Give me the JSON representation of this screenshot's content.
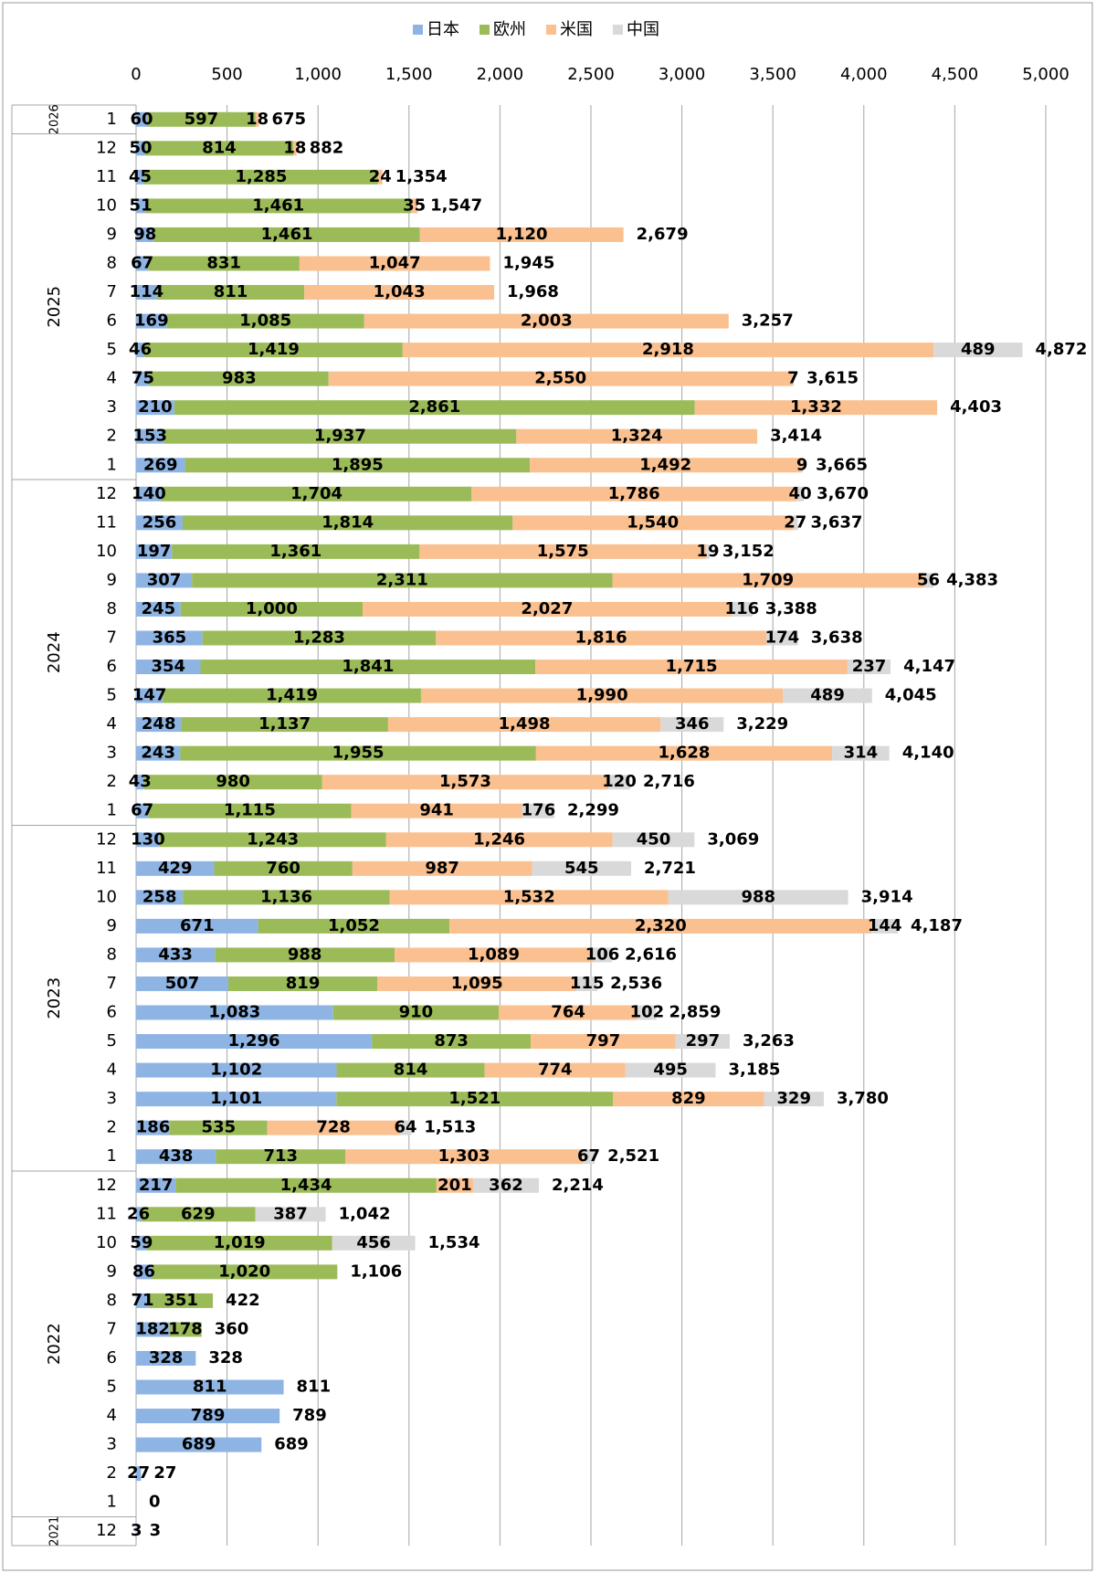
{
  "chart_data": {
    "type": "stacked-bar-horizontal",
    "groups": [
      {
        "label": "2026",
        "categories": [
          "1"
        ]
      },
      {
        "label": "2025",
        "categories": [
          "12",
          "11",
          "10",
          "9",
          "8",
          "7",
          "6",
          "5",
          "4",
          "3",
          "2",
          "1"
        ]
      },
      {
        "label": "2024",
        "categories": [
          "12",
          "11",
          "10",
          "9",
          "8",
          "7",
          "6",
          "5",
          "4",
          "3",
          "2",
          "1"
        ]
      },
      {
        "label": "2023",
        "categories": [
          "12",
          "11",
          "10",
          "9",
          "8",
          "7",
          "6",
          "5",
          "4",
          "3",
          "2",
          "1"
        ]
      },
      {
        "label": "2022",
        "categories": [
          "12",
          "11",
          "10",
          "9",
          "8",
          "7",
          "6",
          "5",
          "4",
          "3",
          "2",
          "1"
        ]
      },
      {
        "label": "2021",
        "categories": [
          "12"
        ]
      }
    ],
    "series": [
      {
        "name": "日本",
        "color": "#8eb4e3",
        "values": [
          60,
          50,
          45,
          51,
          98,
          67,
          114,
          169,
          46,
          75,
          210,
          153,
          269,
          140,
          256,
          197,
          307,
          245,
          365,
          354,
          147,
          248,
          243,
          43,
          67,
          130,
          429,
          258,
          671,
          433,
          507,
          1083,
          1296,
          1102,
          1101,
          186,
          438,
          217,
          26,
          59,
          86,
          71,
          182,
          328,
          811,
          789,
          689,
          27,
          null,
          3
        ],
        "value_labels": [
          "60",
          "50",
          "45",
          "51",
          "98",
          "67",
          "114",
          "169",
          "46",
          "75",
          "210",
          "153",
          "269",
          "140",
          "256",
          "197",
          "307",
          "245",
          "365",
          "354",
          "147",
          "248",
          "243",
          "43",
          "67",
          "130",
          "429",
          "258",
          "671",
          "433",
          "507",
          "1,083",
          "1,296",
          "1,102",
          "1,101",
          "186",
          "438",
          "217",
          "26",
          "59",
          "86",
          "71",
          "182",
          "328",
          "811",
          "789",
          "689",
          "27",
          null,
          "3"
        ]
      },
      {
        "name": "欧州",
        "color": "#9bbb59",
        "values": [
          597,
          814,
          1285,
          1461,
          1461,
          831,
          811,
          1085,
          1419,
          983,
          2861,
          1937,
          1895,
          1704,
          1814,
          1361,
          2311,
          1000,
          1283,
          1841,
          1419,
          1137,
          1955,
          980,
          1115,
          1243,
          760,
          1136,
          1052,
          988,
          819,
          910,
          873,
          814,
          1521,
          535,
          713,
          1434,
          629,
          1019,
          1020,
          351,
          178,
          null,
          null,
          null,
          null,
          null,
          null,
          null
        ],
        "value_labels": [
          "597",
          "814",
          "1,285",
          "1,461",
          "1,461",
          "831",
          "811",
          "1,085",
          "1,419",
          "983",
          "2,861",
          "1,937",
          "1,895",
          "1,704",
          "1,814",
          "1,361",
          "2,311",
          "1,000",
          "1,283",
          "1,841",
          "1,419",
          "1,137",
          "1,955",
          "980",
          "1,115",
          "1,243",
          "760",
          "1,136",
          "1,052",
          "988",
          "819",
          "910",
          "873",
          "814",
          "1,521",
          "535",
          "713",
          "1,434",
          "629",
          "1,019",
          "1,020",
          "351",
          "178",
          null,
          null,
          null,
          null,
          null,
          null,
          null
        ]
      },
      {
        "name": "米国",
        "color": "#fac090",
        "values": [
          18,
          18,
          24,
          35,
          1120,
          1047,
          1043,
          2003,
          2918,
          2550,
          1332,
          1324,
          1492,
          1786,
          1540,
          1575,
          1709,
          2027,
          1816,
          1715,
          1990,
          1498,
          1628,
          1573,
          941,
          1246,
          987,
          1532,
          2320,
          1089,
          1095,
          764,
          797,
          774,
          829,
          728,
          1303,
          201,
          null,
          null,
          null,
          null,
          null,
          null,
          null,
          null,
          null,
          null,
          null,
          null
        ],
        "value_labels": [
          "18",
          "18",
          "24",
          "35",
          "1,120",
          "1,047",
          "1,043",
          "2,003",
          "2,918",
          "2,550",
          "1,332",
          "1,324",
          "1,492",
          "1,786",
          "1,540",
          "1,575",
          "1,709",
          "2,027",
          "1,816",
          "1,715",
          "1,990",
          "1,498",
          "1,628",
          "1,573",
          "941",
          "1,246",
          "987",
          "1,532",
          "2,320",
          "1,089",
          "1,095",
          "764",
          "797",
          "774",
          "829",
          "728",
          "1,303",
          "201",
          null,
          null,
          null,
          null,
          null,
          null,
          null,
          null,
          null,
          null,
          null,
          null
        ]
      },
      {
        "name": "中国",
        "color": "#d9d9d9",
        "values": [
          null,
          null,
          null,
          null,
          null,
          null,
          null,
          null,
          489,
          7,
          null,
          null,
          9,
          40,
          27,
          19,
          56,
          116,
          174,
          237,
          489,
          346,
          314,
          120,
          176,
          450,
          545,
          988,
          144,
          106,
          115,
          102,
          297,
          495,
          329,
          64,
          67,
          362,
          387,
          456,
          null,
          null,
          null,
          null,
          null,
          null,
          null,
          null,
          null,
          null
        ],
        "value_labels": [
          null,
          null,
          null,
          null,
          null,
          null,
          null,
          null,
          "489",
          "7",
          null,
          null,
          "9",
          "40",
          "27",
          "19",
          "56",
          "116",
          "174",
          "237",
          "489",
          "346",
          "314",
          "120",
          "176",
          "450",
          "545",
          "988",
          "144",
          "106",
          "115",
          "102",
          "297",
          "495",
          "329",
          "64",
          "67",
          "362",
          "387",
          "456",
          null,
          null,
          null,
          null,
          null,
          null,
          null,
          null,
          null,
          null
        ]
      }
    ],
    "totals": [
      675,
      882,
      1354,
      1547,
      2679,
      1945,
      1968,
      3257,
      4872,
      3615,
      4403,
      3414,
      3665,
      3670,
      3637,
      3152,
      4383,
      3388,
      3638,
      4147,
      4045,
      3229,
      4140,
      2716,
      2299,
      3069,
      2721,
      3914,
      4187,
      2616,
      2536,
      2859,
      3263,
      3185,
      3780,
      1513,
      2521,
      2214,
      1042,
      1534,
      1106,
      422,
      360,
      328,
      811,
      789,
      689,
      27,
      0,
      3
    ],
    "total_labels": [
      "675",
      "882",
      "1,354",
      "1,547",
      "2,679",
      "1,945",
      "1,968",
      "3,257",
      "4,872",
      "3,615",
      "4,403",
      "3,414",
      "3,665",
      "3,670",
      "3,637",
      "3,152",
      "4,383",
      "3,388",
      "3,638",
      "4,147",
      "4,045",
      "3,229",
      "4,140",
      "2,716",
      "2,299",
      "3,069",
      "2,721",
      "3,914",
      "4,187",
      "2,616",
      "2,536",
      "2,859",
      "3,263",
      "3,185",
      "3,780",
      "1,513",
      "2,521",
      "2,214",
      "1,042",
      "1,534",
      "1,106",
      "422",
      "360",
      "328",
      "811",
      "789",
      "689",
      "27",
      "0",
      "3"
    ],
    "xlim": [
      0,
      5000
    ],
    "xticks": [
      0,
      500,
      {
        "value": 1000,
        "label": "1,000"
      },
      {
        "value": 1500,
        "label": "1,500"
      },
      {
        "value": 2000,
        "label": "2,000"
      },
      {
        "value": 2500,
        "label": "2,500"
      },
      {
        "value": 3000,
        "label": "3,000"
      },
      {
        "value": 3500,
        "label": "3,500"
      },
      {
        "value": 4000,
        "label": "4,000"
      },
      {
        "value": 4500,
        "label": "4,500"
      },
      {
        "value": 5000,
        "label": "5,000"
      }
    ],
    "grid": true,
    "legend": "top"
  }
}
